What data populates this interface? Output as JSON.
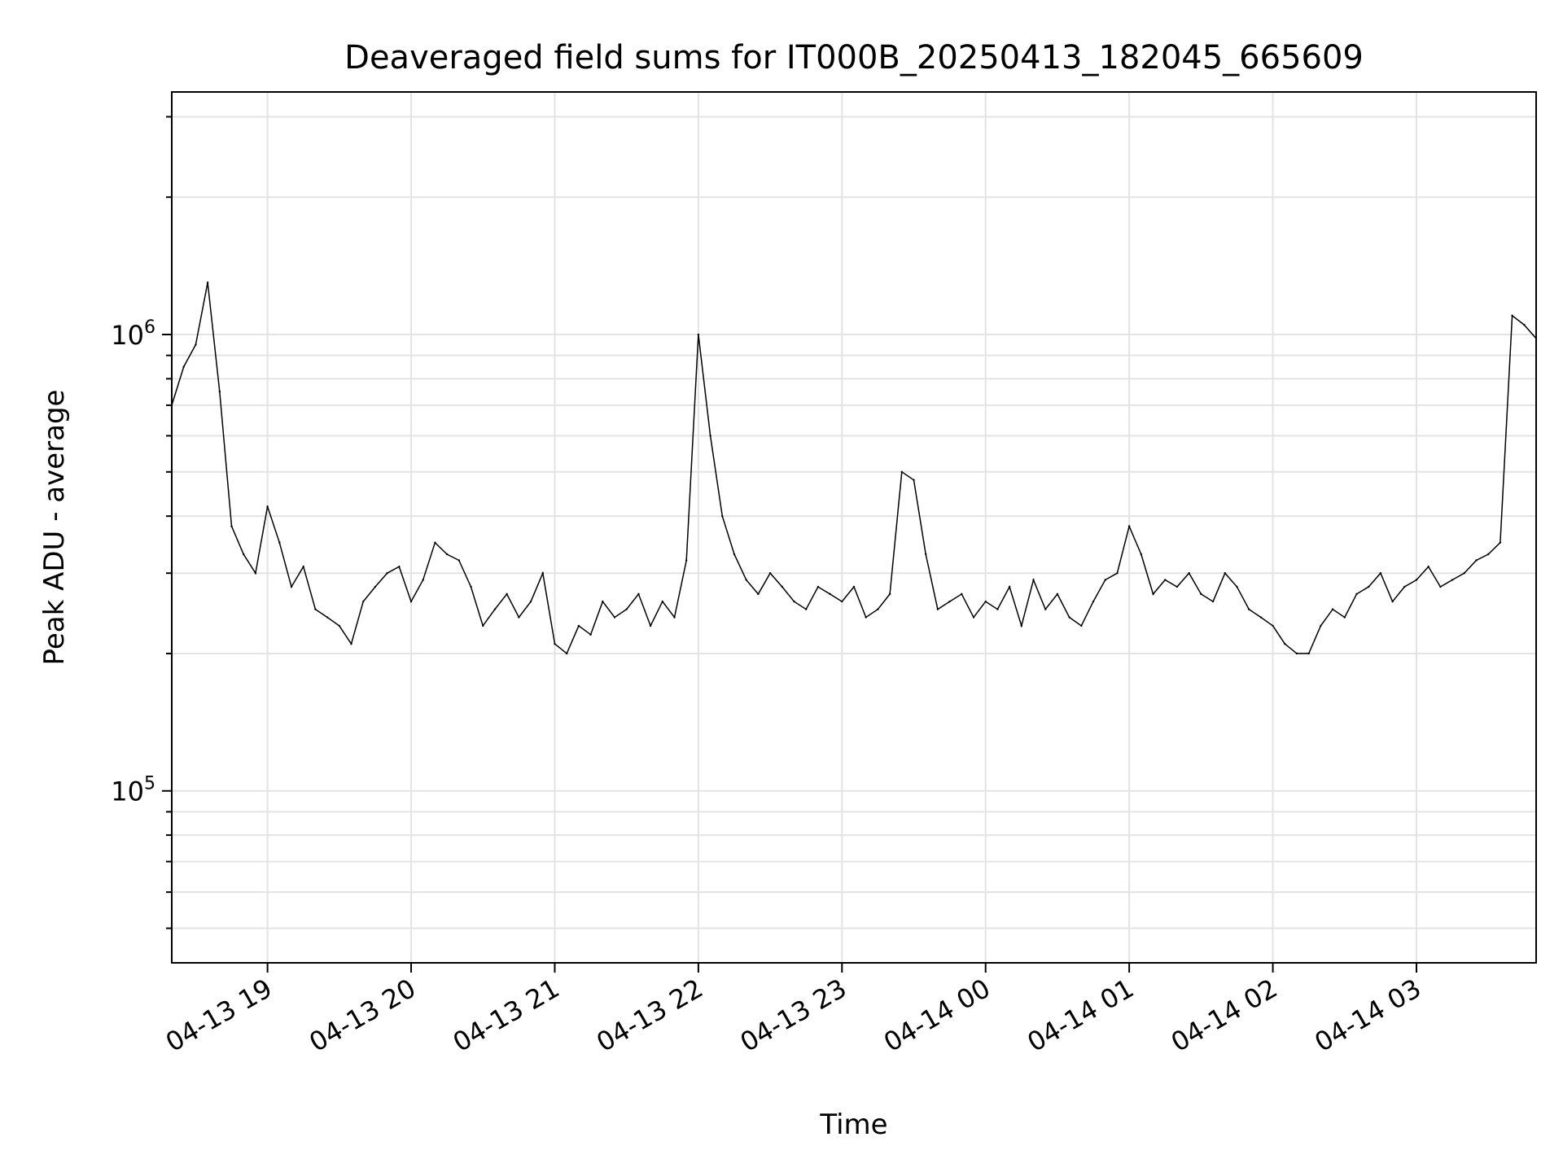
{
  "chart_data": {
    "type": "line",
    "title": "Deaveraged field sums for IT000B_20250413_182045_665609",
    "xlabel": "Time",
    "ylabel": "Peak ADU - average",
    "yscale": "log",
    "ylim": [
      42000,
      3400000
    ],
    "xlim": [
      "2025-04-13 18:20",
      "2025-04-14 03:50"
    ],
    "grid": true,
    "line_color": "#000000",
    "x_ticks": [
      {
        "label": "04-13 19",
        "t": "2025-04-13 19:00"
      },
      {
        "label": "04-13 20",
        "t": "2025-04-13 20:00"
      },
      {
        "label": "04-13 21",
        "t": "2025-04-13 21:00"
      },
      {
        "label": "04-13 22",
        "t": "2025-04-13 22:00"
      },
      {
        "label": "04-13 23",
        "t": "2025-04-13 23:00"
      },
      {
        "label": "04-14 00",
        "t": "2025-04-14 00:00"
      },
      {
        "label": "04-14 01",
        "t": "2025-04-14 01:00"
      },
      {
        "label": "04-14 02",
        "t": "2025-04-14 02:00"
      },
      {
        "label": "04-14 03",
        "t": "2025-04-14 03:00"
      }
    ],
    "y_ticks": [
      {
        "base": "10",
        "exp": "5",
        "value": 100000
      },
      {
        "base": "10",
        "exp": "6",
        "value": 1000000
      }
    ],
    "series": [
      {
        "x": [
          "2025-04-13 18:20",
          "2025-04-13 18:25",
          "2025-04-13 18:30",
          "2025-04-13 18:35",
          "2025-04-13 18:40",
          "2025-04-13 18:45",
          "2025-04-13 18:50",
          "2025-04-13 18:55",
          "2025-04-13 19:00",
          "2025-04-13 19:05",
          "2025-04-13 19:10",
          "2025-04-13 19:15",
          "2025-04-13 19:20",
          "2025-04-13 19:25",
          "2025-04-13 19:30",
          "2025-04-13 19:35",
          "2025-04-13 19:40",
          "2025-04-13 19:45",
          "2025-04-13 19:50",
          "2025-04-13 19:55",
          "2025-04-13 20:00",
          "2025-04-13 20:05",
          "2025-04-13 20:10",
          "2025-04-13 20:15",
          "2025-04-13 20:20",
          "2025-04-13 20:25",
          "2025-04-13 20:30",
          "2025-04-13 20:35",
          "2025-04-13 20:40",
          "2025-04-13 20:45",
          "2025-04-13 20:50",
          "2025-04-13 20:55",
          "2025-04-13 21:00",
          "2025-04-13 21:05",
          "2025-04-13 21:10",
          "2025-04-13 21:15",
          "2025-04-13 21:20",
          "2025-04-13 21:25",
          "2025-04-13 21:30",
          "2025-04-13 21:35",
          "2025-04-13 21:40",
          "2025-04-13 21:45",
          "2025-04-13 21:50",
          "2025-04-13 21:55",
          "2025-04-13 22:00",
          "2025-04-13 22:05",
          "2025-04-13 22:10",
          "2025-04-13 22:15",
          "2025-04-13 22:20",
          "2025-04-13 22:25",
          "2025-04-13 22:30",
          "2025-04-13 22:35",
          "2025-04-13 22:40",
          "2025-04-13 22:45",
          "2025-04-13 22:50",
          "2025-04-13 22:55",
          "2025-04-13 23:00",
          "2025-04-13 23:05",
          "2025-04-13 23:10",
          "2025-04-13 23:15",
          "2025-04-13 23:20",
          "2025-04-13 23:25",
          "2025-04-13 23:30",
          "2025-04-13 23:35",
          "2025-04-13 23:40",
          "2025-04-13 23:45",
          "2025-04-13 23:50",
          "2025-04-13 23:55",
          "2025-04-14 00:00",
          "2025-04-14 00:05",
          "2025-04-14 00:10",
          "2025-04-14 00:15",
          "2025-04-14 00:20",
          "2025-04-14 00:25",
          "2025-04-14 00:30",
          "2025-04-14 00:35",
          "2025-04-14 00:40",
          "2025-04-14 00:45",
          "2025-04-14 00:50",
          "2025-04-14 00:55",
          "2025-04-14 01:00",
          "2025-04-14 01:05",
          "2025-04-14 01:10",
          "2025-04-14 01:15",
          "2025-04-14 01:20",
          "2025-04-14 01:25",
          "2025-04-14 01:30",
          "2025-04-14 01:35",
          "2025-04-14 01:40",
          "2025-04-14 01:45",
          "2025-04-14 01:50",
          "2025-04-14 01:55",
          "2025-04-14 02:00",
          "2025-04-14 02:05",
          "2025-04-14 02:10",
          "2025-04-14 02:15",
          "2025-04-14 02:20",
          "2025-04-14 02:25",
          "2025-04-14 02:30",
          "2025-04-14 02:35",
          "2025-04-14 02:40",
          "2025-04-14 02:45",
          "2025-04-14 02:50",
          "2025-04-14 02:55",
          "2025-04-14 03:00",
          "2025-04-14 03:05",
          "2025-04-14 03:10",
          "2025-04-14 03:15",
          "2025-04-14 03:20",
          "2025-04-14 03:25",
          "2025-04-14 03:30",
          "2025-04-14 03:35",
          "2025-04-14 03:40",
          "2025-04-14 03:45",
          "2025-04-14 03:50"
        ],
        "y": [
          700000,
          850000,
          950000,
          1300000,
          750000,
          380000,
          330000,
          300000,
          420000,
          350000,
          280000,
          310000,
          250000,
          240000,
          230000,
          210000,
          260000,
          280000,
          300000,
          310000,
          260000,
          290000,
          350000,
          330000,
          320000,
          280000,
          230000,
          250000,
          270000,
          240000,
          260000,
          300000,
          210000,
          200000,
          230000,
          220000,
          260000,
          240000,
          250000,
          270000,
          230000,
          260000,
          240000,
          320000,
          1000000,
          600000,
          400000,
          330000,
          290000,
          270000,
          300000,
          280000,
          260000,
          250000,
          280000,
          270000,
          260000,
          280000,
          240000,
          250000,
          270000,
          500000,
          480000,
          330000,
          250000,
          260000,
          270000,
          240000,
          260000,
          250000,
          280000,
          230000,
          290000,
          250000,
          270000,
          240000,
          230000,
          260000,
          290000,
          300000,
          380000,
          330000,
          270000,
          290000,
          280000,
          300000,
          270000,
          260000,
          300000,
          280000,
          250000,
          240000,
          230000,
          210000,
          200000,
          200000,
          230000,
          250000,
          240000,
          270000,
          280000,
          300000,
          260000,
          280000,
          290000,
          310000,
          280000,
          290000,
          300000,
          320000,
          330000,
          350000,
          1100000,
          1050000,
          980000
        ]
      }
    ]
  }
}
